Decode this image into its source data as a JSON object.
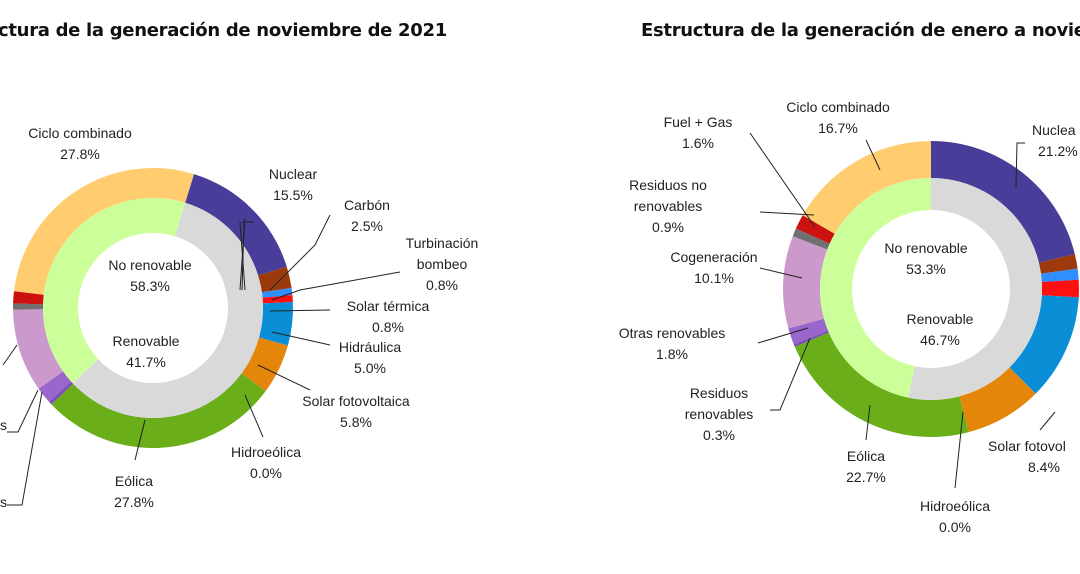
{
  "chart_data": [
    {
      "type": "pie",
      "subtype": "nested-donut",
      "title": "ctura de la generación de noviembre de 2021",
      "inner_ring": [
        {
          "name": "No renovable",
          "value": 58.3,
          "label": "58.3%",
          "color": "#D9D9D9"
        },
        {
          "name": "Renovable",
          "value": 41.7,
          "label": "41.7%",
          "color": "#CCFF99"
        }
      ],
      "outer_ring": [
        {
          "name": "Nuclear",
          "value": 15.5,
          "label": "15.5%",
          "color": "#483D99"
        },
        {
          "name": "Carbón",
          "value": 2.5,
          "label": "2.5%",
          "color": "#9C3A0B"
        },
        {
          "name": "Turbinación bombeo",
          "value": 0.8,
          "label": "0.8%",
          "color": "#2F8FFF"
        },
        {
          "name": "Solar térmica",
          "value": 0.8,
          "label": "0.8%",
          "color": "#FF1010"
        },
        {
          "name": "Hidráulica",
          "value": 5.0,
          "label": "5.0%",
          "color": "#0A8FD6"
        },
        {
          "name": "Solar fotovoltaica",
          "value": 5.8,
          "label": "5.8%",
          "color": "#E3860A"
        },
        {
          "name": "Hidroeólica",
          "value": 0.0,
          "label": "0.0%",
          "color": "#3A7F3A"
        },
        {
          "name": "Eólica",
          "value": 27.8,
          "label": "27.8%",
          "color": "#6AAE1A"
        },
        {
          "name": "s",
          "value": 0.4,
          "label": "",
          "color": "#7A4FB8"
        },
        {
          "name": "s",
          "value": 1.9,
          "label": "",
          "color": "#9966CC"
        },
        {
          "name": "",
          "value": 9.6,
          "label": "",
          "color": "#CC99CC"
        },
        {
          "name": "",
          "value": 0.7,
          "label": "",
          "color": "#707070"
        },
        {
          "name": "",
          "value": 1.4,
          "label": "",
          "color": "#CC1111"
        },
        {
          "name": "Ciclo combinado",
          "value": 27.8,
          "label": "27.8%",
          "color": "#FFCC70"
        }
      ]
    },
    {
      "type": "pie",
      "subtype": "nested-donut",
      "title": "Estructura de la generación de enero a novie",
      "inner_ring": [
        {
          "name": "No renovable",
          "value": 53.3,
          "label": "53.3%",
          "color": "#D9D9D9"
        },
        {
          "name": "Renovable",
          "value": 46.7,
          "label": "46.7%",
          "color": "#CCFF99"
        }
      ],
      "outer_ring": [
        {
          "name": "Nuclea",
          "value": 21.2,
          "label": "21.2%",
          "color": "#483D99"
        },
        {
          "name": "",
          "value": 1.6,
          "label": "",
          "color": "#9C3A0B"
        },
        {
          "name": "",
          "value": 1.2,
          "label": "",
          "color": "#2F8FFF"
        },
        {
          "name": "",
          "value": 1.9,
          "label": "",
          "color": "#FF1010"
        },
        {
          "name": "",
          "value": 11.6,
          "label": "",
          "color": "#0A8FD6"
        },
        {
          "name": "Solar fotovol",
          "value": 8.4,
          "label": "8.4%",
          "color": "#E3860A"
        },
        {
          "name": "Hidroeólica",
          "value": 0.0,
          "label": "0.0%",
          "color": "#3A7F3A"
        },
        {
          "name": "Eólica",
          "value": 22.7,
          "label": "22.7%",
          "color": "#6AAE1A"
        },
        {
          "name": "Residuos renovables",
          "value": 0.3,
          "label": "0.3%",
          "color": "#7A4FB8"
        },
        {
          "name": "Otras renovables",
          "value": 1.8,
          "label": "1.8%",
          "color": "#9966CC"
        },
        {
          "name": "Cogeneración",
          "value": 10.1,
          "label": "10.1%",
          "color": "#CC99CC"
        },
        {
          "name": "Residuos no renovables",
          "value": 0.9,
          "label": "0.9%",
          "color": "#707070"
        },
        {
          "name": "Fuel + Gas",
          "value": 1.6,
          "label": "1.6%",
          "color": "#CC1111"
        },
        {
          "name": "Ciclo combinado",
          "value": 16.7,
          "label": "16.7%",
          "color": "#FFCC70"
        }
      ]
    }
  ]
}
